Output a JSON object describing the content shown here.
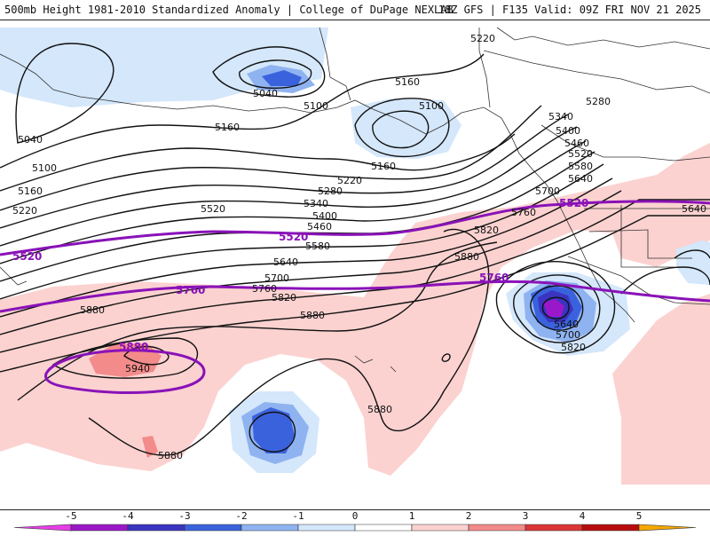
{
  "header": {
    "title": "500mb Height 1981-2010 Standardized Anomaly | College of DuPage NEXLAB",
    "run": "18Z GFS | F135 Valid: 09Z FRI NOV 21 2025"
  },
  "contour_labels": [
    "5040",
    "5040",
    "5100",
    "5100",
    "5100",
    "5160",
    "5160",
    "5160",
    "5160",
    "5220",
    "5220",
    "5220",
    "5280",
    "5280",
    "5340",
    "5340",
    "5400",
    "5400",
    "5460",
    "5460",
    "5520",
    "5520",
    "5580",
    "5580",
    "5640",
    "5640",
    "5640",
    "5640",
    "5700",
    "5700",
    "5700",
    "5760",
    "5760",
    "5820",
    "5820",
    "5820",
    "5880",
    "5880",
    "5880",
    "5880",
    "5880",
    "5940"
  ],
  "highlight_labels": [
    "5520",
    "5520",
    "5520",
    "5760",
    "5760",
    "5880"
  ],
  "colorbar": {
    "ticks": [
      "-5",
      "-4",
      "-3",
      "-2",
      "-1",
      "0",
      "1",
      "2",
      "3",
      "4",
      "5"
    ],
    "colors": [
      "#e73ee8",
      "#9b18c8",
      "#3a34c0",
      "#3b62dd",
      "#8fb3f0",
      "#d4e7fb",
      "#ffffff",
      "#fbd2d0",
      "#f38b8b",
      "#db3535",
      "#b80c0c",
      "#f5a800"
    ]
  }
}
